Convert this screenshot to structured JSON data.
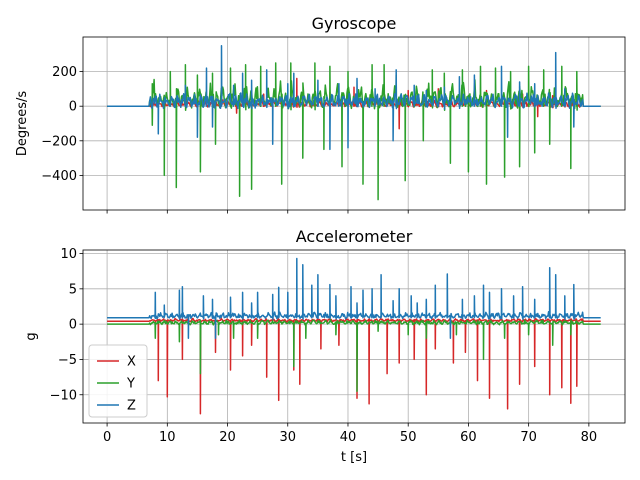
{
  "chart_data": [
    {
      "type": "line",
      "title": "Gyroscope",
      "xlabel": "",
      "ylabel": "Degrees/s",
      "xlim": [
        -4,
        86
      ],
      "ylim": [
        -600,
        400
      ],
      "xticks": [
        0,
        10,
        20,
        30,
        40,
        50,
        60,
        70,
        80
      ],
      "yticks": [
        -400,
        -200,
        0,
        200
      ],
      "xtick_labels_shown": false,
      "grid": true,
      "active_range": [
        7,
        79
      ],
      "series": [
        {
          "name": "X",
          "color": "#d62728",
          "baseline": 0,
          "pos_peak": 90,
          "neg_peak": -90,
          "spikes": [
            [
              9.5,
              60
            ],
            [
              21.5,
              -40
            ],
            [
              26,
              70
            ],
            [
              31.5,
              160
            ],
            [
              37,
              80
            ],
            [
              41,
              110
            ],
            [
              48.5,
              -130
            ],
            [
              50,
              90
            ],
            [
              55,
              100
            ],
            [
              63,
              90
            ],
            [
              69,
              70
            ],
            [
              71.5,
              -60
            ],
            [
              74,
              60
            ],
            [
              76,
              80
            ]
          ]
        },
        {
          "name": "Y",
          "color": "#2ca02c",
          "baseline": 0,
          "pos_peak": 240,
          "neg_peak": -400,
          "spikes": [
            [
              7.5,
              130
            ],
            [
              7.5,
              -110
            ],
            [
              9.5,
              -400
            ],
            [
              10.5,
              200
            ],
            [
              11.5,
              -470
            ],
            [
              13,
              240
            ],
            [
              15,
              180
            ],
            [
              15.5,
              -380
            ],
            [
              17.5,
              190
            ],
            [
              18,
              -220
            ],
            [
              20.5,
              220
            ],
            [
              22,
              -520
            ],
            [
              23,
              240
            ],
            [
              24,
              -480
            ],
            [
              25.5,
              230
            ],
            [
              28,
              250
            ],
            [
              29,
              -450
            ],
            [
              30.5,
              250
            ],
            [
              32.5,
              -300
            ],
            [
              34.5,
              250
            ],
            [
              36,
              -250
            ],
            [
              37,
              230
            ],
            [
              39,
              -350
            ],
            [
              40,
              200
            ],
            [
              42.5,
              -450
            ],
            [
              44,
              240
            ],
            [
              45,
              -540
            ],
            [
              46,
              240
            ],
            [
              48,
              180
            ],
            [
              49.5,
              -430
            ],
            [
              52.5,
              -200
            ],
            [
              54,
              210
            ],
            [
              56,
              190
            ],
            [
              57,
              -330
            ],
            [
              59,
              210
            ],
            [
              60,
              -380
            ],
            [
              62,
              230
            ],
            [
              63,
              -450
            ],
            [
              64.5,
              220
            ],
            [
              66,
              -410
            ],
            [
              67,
              200
            ],
            [
              68.5,
              -350
            ],
            [
              70,
              230
            ],
            [
              71,
              -270
            ],
            [
              72.5,
              210
            ],
            [
              73.5,
              -220
            ],
            [
              75.5,
              230
            ],
            [
              77,
              -360
            ],
            [
              78,
              200
            ]
          ]
        },
        {
          "name": "Z",
          "color": "#1f77b4",
          "baseline": 0,
          "pos_peak": 200,
          "neg_peak": -200,
          "spikes": [
            [
              8.5,
              -160
            ],
            [
              13,
              120
            ],
            [
              15,
              -180
            ],
            [
              16.5,
              220
            ],
            [
              17.5,
              -120
            ],
            [
              19,
              350
            ],
            [
              21,
              120
            ],
            [
              22.5,
              190
            ],
            [
              24,
              150
            ],
            [
              26.5,
              210
            ],
            [
              27.5,
              -220
            ],
            [
              30,
              130
            ],
            [
              31,
              190
            ],
            [
              35,
              150
            ],
            [
              37,
              -250
            ],
            [
              38.5,
              130
            ],
            [
              40,
              -240
            ],
            [
              41.5,
              160
            ],
            [
              44.5,
              100
            ],
            [
              47.5,
              -200
            ],
            [
              48,
              210
            ],
            [
              51,
              120
            ],
            [
              53,
              90
            ],
            [
              56,
              110
            ],
            [
              58.5,
              170
            ],
            [
              61,
              180
            ],
            [
              65.5,
              230
            ],
            [
              66.5,
              -180
            ],
            [
              68.5,
              140
            ],
            [
              71,
              130
            ],
            [
              74.5,
              310
            ],
            [
              76,
              100
            ],
            [
              77.5,
              -120
            ]
          ]
        }
      ]
    },
    {
      "type": "line",
      "title": "Accelerometer",
      "xlabel": "t [s]",
      "ylabel": "g",
      "xlim": [
        -4,
        86
      ],
      "ylim": [
        -14,
        10.5
      ],
      "xticks": [
        0,
        10,
        20,
        30,
        40,
        50,
        60,
        70,
        80
      ],
      "yticks": [
        -10,
        -5,
        0,
        5,
        10
      ],
      "grid": true,
      "legend": "lower-left",
      "active_range": [
        7,
        79
      ],
      "series": [
        {
          "name": "X",
          "color": "#d62728",
          "baseline": 0.4,
          "pos_peak": 1,
          "neg_peak": -1,
          "spikes": [
            [
              8.5,
              -8
            ],
            [
              10,
              -10.3
            ],
            [
              12.5,
              -5
            ],
            [
              15.5,
              -12.7
            ],
            [
              18,
              -4
            ],
            [
              20.5,
              -6.5
            ],
            [
              22.5,
              -4.5
            ],
            [
              24,
              -3
            ],
            [
              26.5,
              -7.5
            ],
            [
              28.5,
              -10.8
            ],
            [
              31,
              -6.5
            ],
            [
              32,
              -8.5
            ],
            [
              35.5,
              -3.5
            ],
            [
              38.5,
              -3
            ],
            [
              41.5,
              -10.5
            ],
            [
              43.5,
              -11.3
            ],
            [
              46.5,
              -7
            ],
            [
              48.5,
              -5.5
            ],
            [
              51,
              -5
            ],
            [
              53,
              -10
            ],
            [
              54.5,
              -3.5
            ],
            [
              57.5,
              -5.5
            ],
            [
              59.5,
              -4
            ],
            [
              61.5,
              -8
            ],
            [
              63.5,
              -10.5
            ],
            [
              66.5,
              -12
            ],
            [
              68.5,
              -8.5
            ],
            [
              71,
              -6
            ],
            [
              73.5,
              -10
            ],
            [
              75.5,
              -9
            ],
            [
              77,
              -11.2
            ],
            [
              78,
              -8.8
            ]
          ]
        },
        {
          "name": "Y",
          "color": "#2ca02c",
          "baseline": 0,
          "pos_peak": 1.5,
          "neg_peak": -1.5,
          "spikes": [
            [
              8,
              -2
            ],
            [
              12,
              -2.5
            ],
            [
              15.5,
              -7
            ],
            [
              18.5,
              -1.5
            ],
            [
              21,
              -2
            ],
            [
              25,
              -2
            ],
            [
              31,
              -6
            ],
            [
              33,
              -2
            ],
            [
              38,
              -1.5
            ],
            [
              41.5,
              -9.5
            ],
            [
              45,
              -1
            ],
            [
              50,
              -1.5
            ],
            [
              53,
              -2
            ],
            [
              58,
              -1.5
            ],
            [
              62.5,
              -5
            ],
            [
              66,
              -2
            ],
            [
              70,
              -1.5
            ],
            [
              74,
              -3
            ],
            [
              77,
              -1.5
            ]
          ]
        },
        {
          "name": "Z",
          "color": "#1f77b4",
          "baseline": 0.9,
          "pos_peak": 2,
          "neg_peak": -2,
          "spikes": [
            [
              8,
              4.5
            ],
            [
              9.5,
              2.7
            ],
            [
              12,
              4.8
            ],
            [
              12.5,
              5.3
            ],
            [
              13.5,
              -2
            ],
            [
              16,
              4
            ],
            [
              17.5,
              3.5
            ],
            [
              18,
              -2
            ],
            [
              20.5,
              3.8
            ],
            [
              22.5,
              4.5
            ],
            [
              24,
              3
            ],
            [
              25,
              4.5
            ],
            [
              27.5,
              4.2
            ],
            [
              28.5,
              5.2
            ],
            [
              30,
              4.5
            ],
            [
              31.5,
              9.3
            ],
            [
              32.5,
              8.4
            ],
            [
              34,
              5.5
            ],
            [
              35,
              7
            ],
            [
              37,
              5.6
            ],
            [
              38,
              4
            ],
            [
              40.5,
              5.3
            ],
            [
              41.5,
              3
            ],
            [
              42.5,
              4.8
            ],
            [
              44,
              5
            ],
            [
              45.5,
              7
            ],
            [
              47.5,
              3.3
            ],
            [
              48.5,
              5
            ],
            [
              50.5,
              4
            ],
            [
              51.5,
              3
            ],
            [
              53,
              3.5
            ],
            [
              54.5,
              5.5
            ],
            [
              56.5,
              7.1
            ],
            [
              57,
              -2
            ],
            [
              59,
              3.5
            ],
            [
              61,
              4
            ],
            [
              62.5,
              5.5
            ],
            [
              63.5,
              4.5
            ],
            [
              65.5,
              5
            ],
            [
              67.5,
              4
            ],
            [
              69,
              5.3
            ],
            [
              71,
              3.5
            ],
            [
              73.5,
              8
            ],
            [
              74.5,
              7
            ],
            [
              76,
              4
            ],
            [
              77.5,
              5.6
            ]
          ]
        }
      ]
    }
  ]
}
